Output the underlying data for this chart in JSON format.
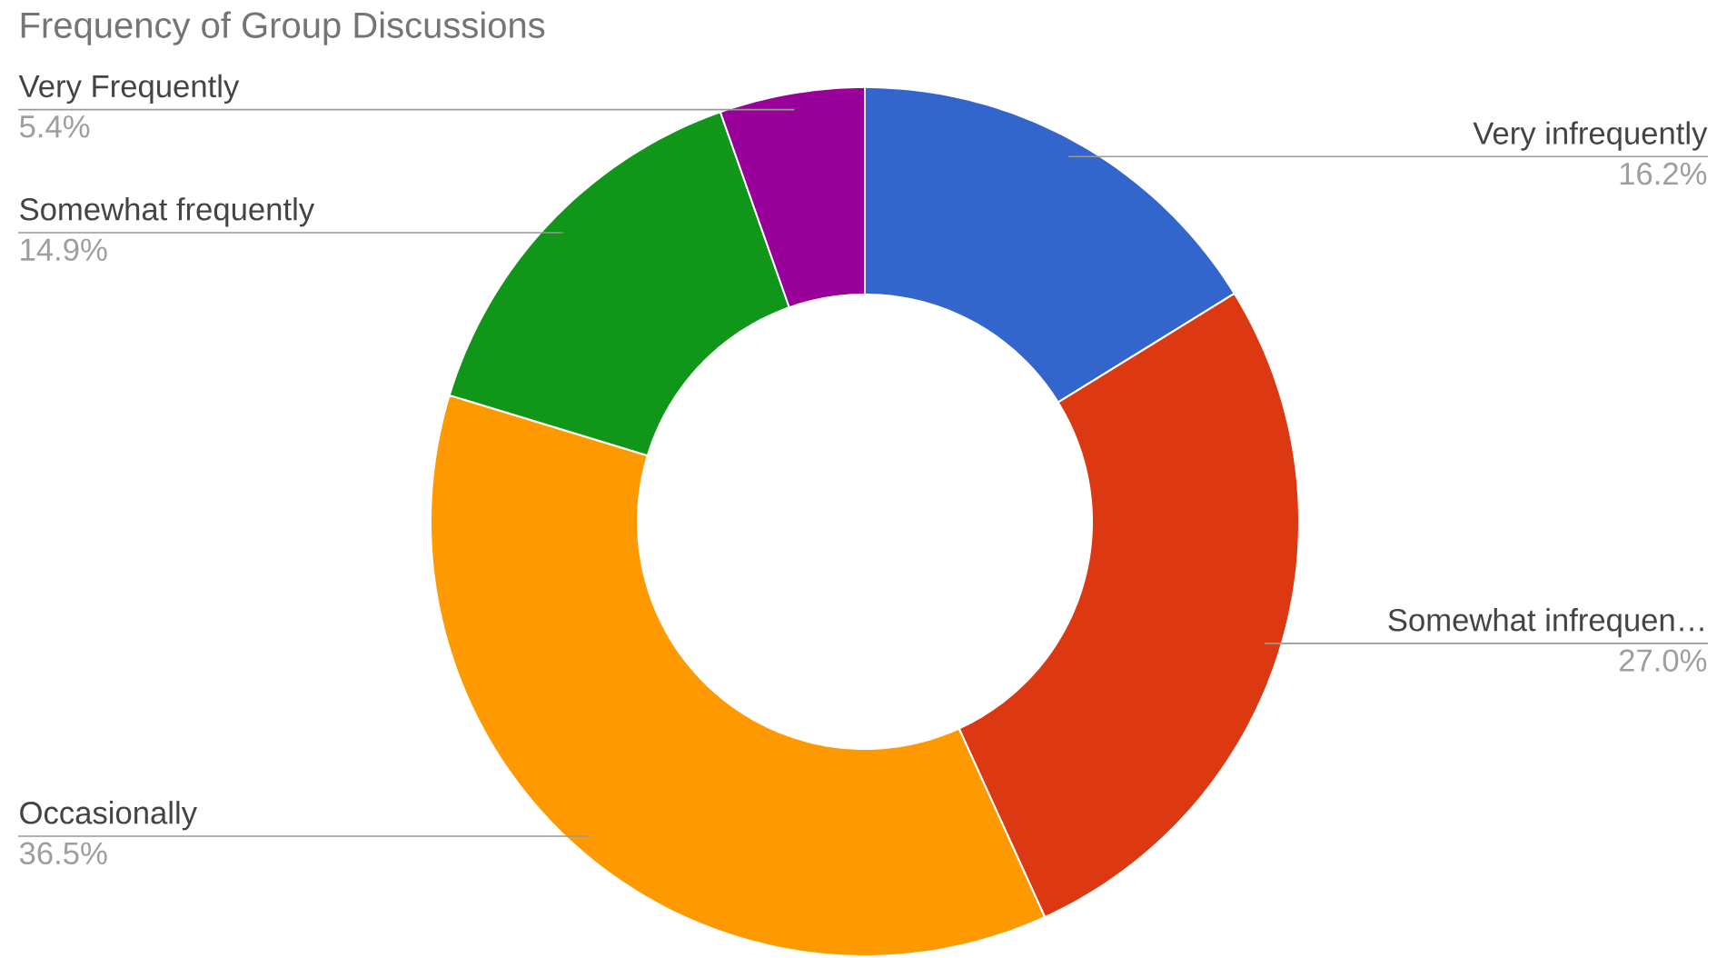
{
  "chart_data": {
    "type": "donut",
    "title": "Frequency of Group Discussions",
    "categories": [
      "Very infrequently",
      "Somewhat infrequen…",
      "Occasionally",
      "Somewhat frequently",
      "Very Frequently"
    ],
    "values": [
      16.2,
      27.0,
      36.5,
      14.9,
      5.4
    ],
    "colors": [
      "#3366cc",
      "#dc3912",
      "#ff9900",
      "#109618",
      "#990099"
    ],
    "value_labels": [
      "16.2%",
      "27.0%",
      "36.5%",
      "14.9%",
      "5.4%"
    ]
  }
}
